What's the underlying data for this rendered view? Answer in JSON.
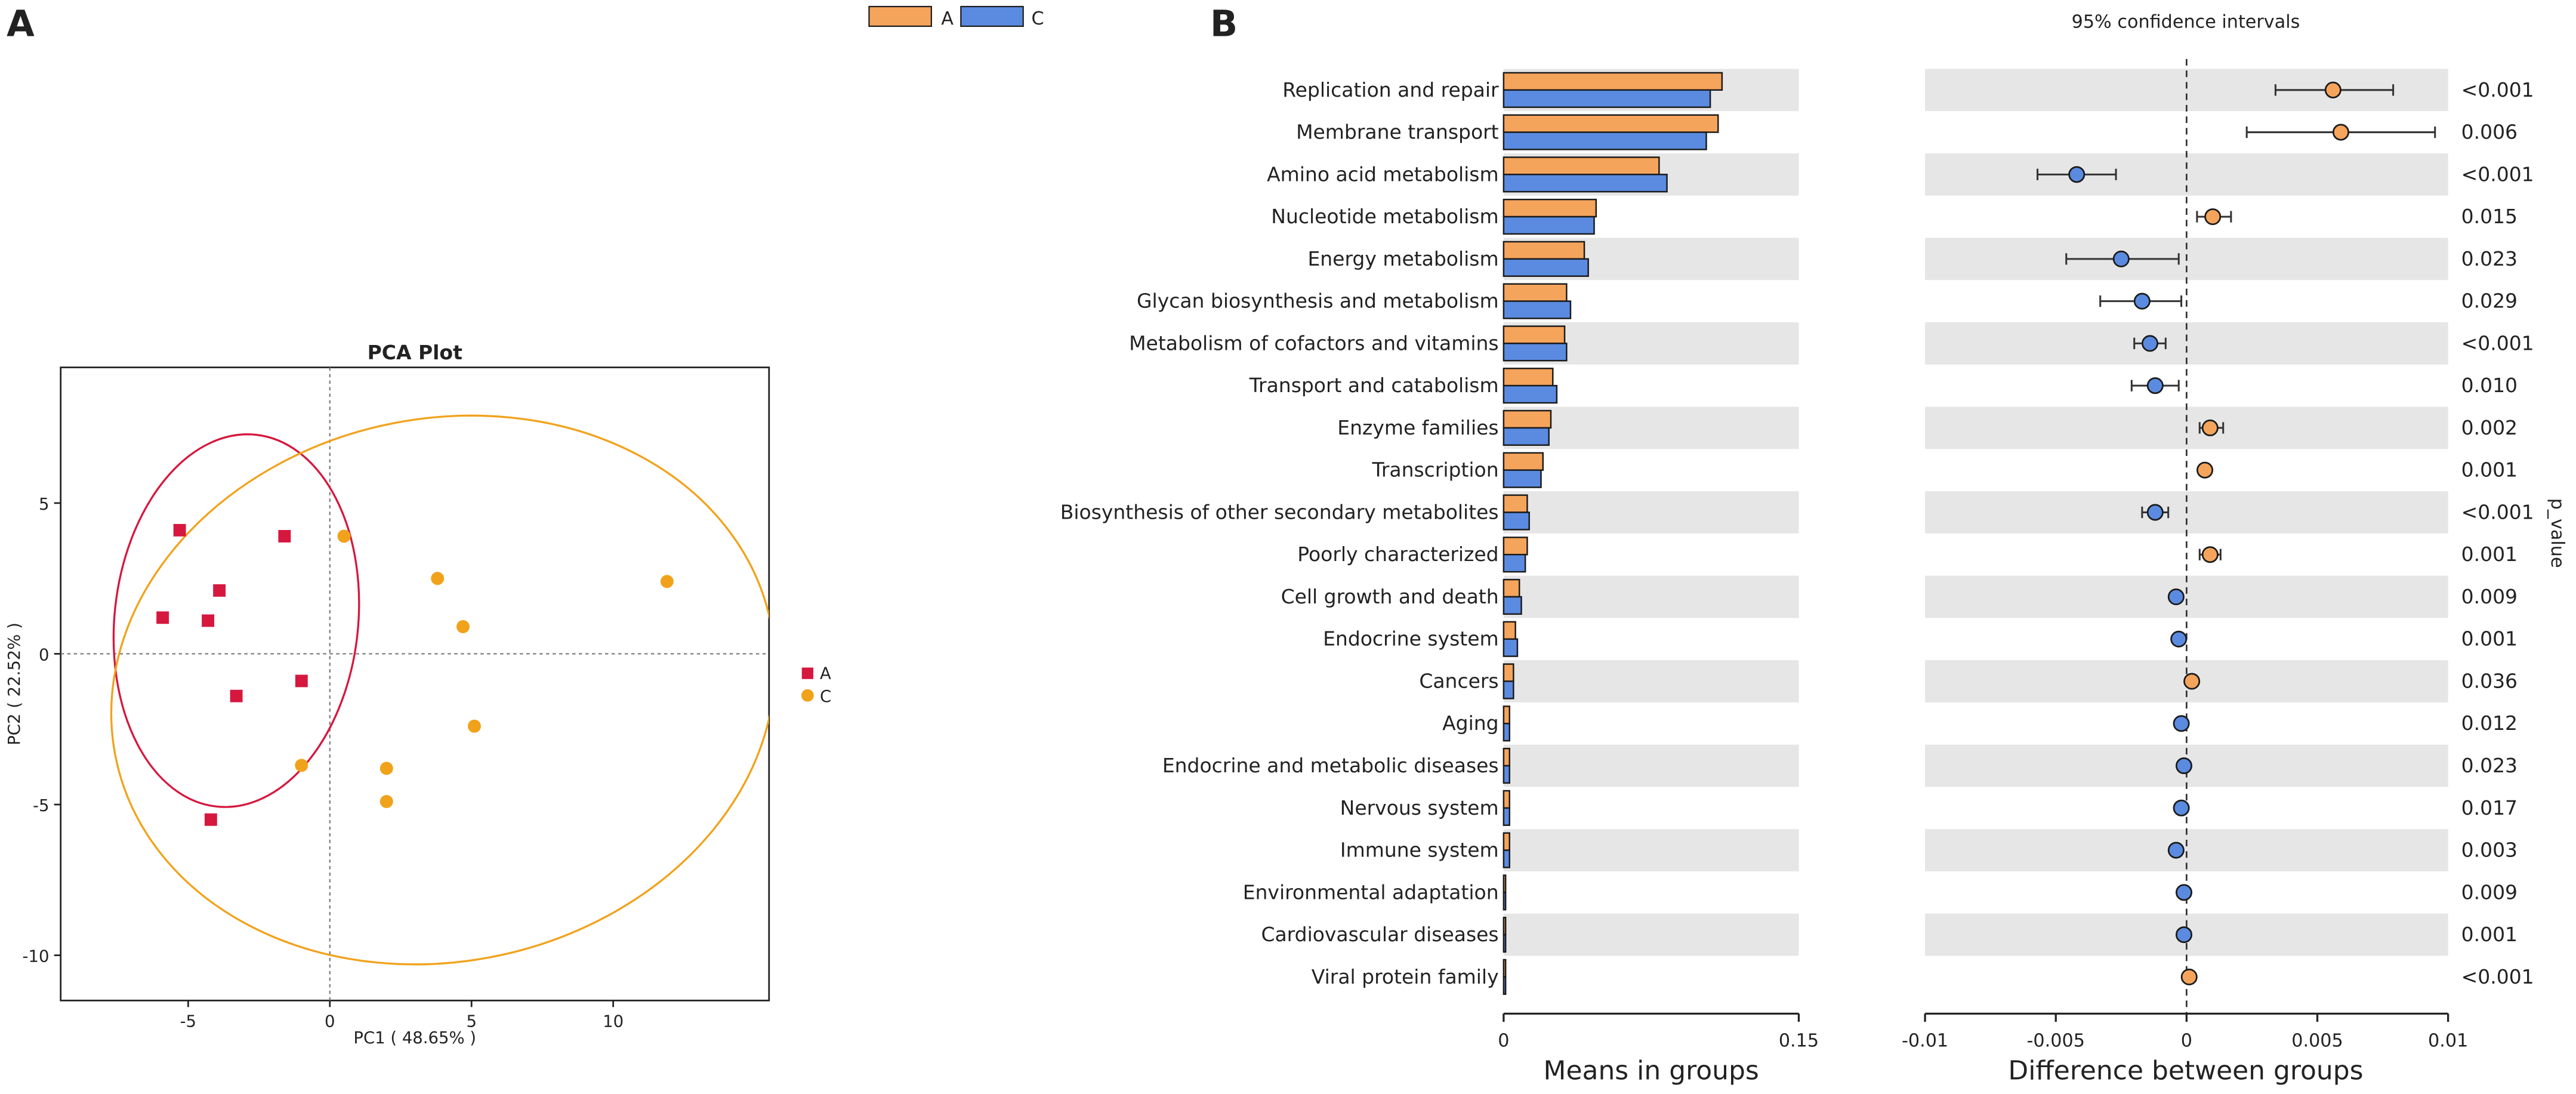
{
  "figure": {
    "colors": {
      "A_pca": "#d6173e",
      "C_pca": "#f1a21b",
      "A_bar": "#f5a45c",
      "C_bar": "#5b8be0",
      "stroke": "#1b1b1b",
      "stripe": "#e6e6e6"
    }
  },
  "chart_data": [
    {
      "id": "panel-a",
      "type": "scatter",
      "panel_label": "A",
      "title": "PCA Plot",
      "xlabel": "PC1 ( 48.65% )",
      "ylabel": "PC2 ( 22.52% )",
      "xlim": [
        -9.5,
        15.5
      ],
      "ylim": [
        -11.5,
        9.5
      ],
      "xticks": [
        -5,
        0,
        5,
        10
      ],
      "yticks": [
        5,
        0,
        -5,
        -10
      ],
      "legend": [
        "A",
        "C"
      ],
      "series": [
        {
          "name": "A",
          "marker": "square",
          "points": [
            [
              -5.3,
              4.1
            ],
            [
              -1.6,
              3.9
            ],
            [
              -3.9,
              2.1
            ],
            [
              -5.9,
              1.2
            ],
            [
              -4.3,
              1.1
            ],
            [
              -1.0,
              -0.9
            ],
            [
              -3.3,
              -1.4
            ],
            [
              -4.2,
              -5.5
            ]
          ]
        },
        {
          "name": "C",
          "marker": "circle",
          "points": [
            [
              0.5,
              3.9
            ],
            [
              3.8,
              2.5
            ],
            [
              11.9,
              2.4
            ],
            [
              4.7,
              0.9
            ],
            [
              5.1,
              -2.4
            ],
            [
              -1.0,
              -3.7
            ],
            [
              2.0,
              -3.8
            ],
            [
              2.0,
              -4.9
            ]
          ]
        }
      ],
      "ellipses": [
        {
          "series": "A",
          "center": [
            -3.3,
            1.1
          ],
          "rx": 4.3,
          "ry": 6.2,
          "angle": 6
        },
        {
          "series": "C",
          "center": [
            4.0,
            -1.2
          ],
          "rx": 11.8,
          "ry": 9.0,
          "angle": -12
        }
      ]
    },
    {
      "id": "panel-b",
      "type": "bar",
      "panel_label": "B",
      "legend": [
        "A",
        "C"
      ],
      "xlabel": "Means in groups",
      "xlim": [
        0,
        0.15
      ],
      "xticks": [
        0,
        0.15
      ],
      "categories": [
        "Replication and repair",
        "Membrane transport",
        "Amino acid metabolism",
        "Nucleotide metabolism",
        "Energy metabolism",
        "Glycan biosynthesis and metabolism",
        "Metabolism of cofactors and vitamins",
        "Transport and catabolism",
        "Enzyme families",
        "Transcription",
        "Biosynthesis of other secondary metabolites",
        "Poorly characterized",
        "Cell growth and death",
        "Endocrine system",
        "Cancers",
        "Aging",
        "Endocrine and metabolic diseases",
        "Nervous system",
        "Immune system",
        "Environmental adaptation",
        "Cardiovascular diseases",
        "Viral protein family"
      ],
      "series": [
        {
          "name": "A",
          "values": [
            0.111,
            0.109,
            0.079,
            0.047,
            0.041,
            0.032,
            0.031,
            0.025,
            0.024,
            0.02,
            0.012,
            0.012,
            0.008,
            0.006,
            0.005,
            0.003,
            0.003,
            0.003,
            0.003,
            0.001,
            0.001,
            0.001
          ]
        },
        {
          "name": "C",
          "values": [
            0.105,
            0.103,
            0.083,
            0.046,
            0.043,
            0.034,
            0.032,
            0.027,
            0.023,
            0.019,
            0.013,
            0.011,
            0.009,
            0.007,
            0.005,
            0.003,
            0.003,
            0.003,
            0.003,
            0.001,
            0.001,
            0.001
          ]
        }
      ]
    },
    {
      "id": "panel-b-diff",
      "type": "scatter",
      "title": "95% confidence intervals",
      "xlabel": "Difference between groups",
      "ylabel": "p_value",
      "xlim": [
        -0.01,
        0.01
      ],
      "xticks": [
        -0.01,
        -0.005,
        0,
        0.005,
        0.01
      ],
      "xtick_labels": [
        "-0.01",
        "-0.005",
        "0",
        "0.005",
        "0.01"
      ],
      "diff": [
        0.0056,
        0.0059,
        -0.0042,
        0.001,
        -0.0025,
        -0.0017,
        -0.0014,
        -0.0012,
        0.0009,
        0.0007,
        -0.0012,
        0.0009,
        -0.0004,
        -0.0003,
        0.0002,
        -0.0002,
        -0.0001,
        -0.0002,
        -0.0004,
        -0.0001,
        -0.0001,
        0.0001
      ],
      "ci_low": [
        0.0034,
        0.0023,
        -0.0057,
        0.0004,
        -0.0046,
        -0.0033,
        -0.002,
        -0.0021,
        0.0005,
        0.0007,
        -0.0017,
        0.0005,
        -0.0004,
        -0.0003,
        0.0002,
        -0.0002,
        -0.0001,
        -0.0002,
        -0.0004,
        -0.0001,
        -0.0001,
        0.0001
      ],
      "ci_high": [
        0.0079,
        0.0095,
        -0.0027,
        0.0017,
        -0.0003,
        -0.0002,
        -0.0008,
        -0.0003,
        0.0014,
        0.0007,
        -0.0007,
        0.0013,
        -0.0004,
        -0.0003,
        0.0002,
        -0.0002,
        -0.0001,
        -0.0002,
        -0.0004,
        -0.0001,
        -0.0001,
        0.0001
      ],
      "colors": [
        "A",
        "A",
        "C",
        "A",
        "C",
        "C",
        "C",
        "C",
        "A",
        "A",
        "C",
        "A",
        "C",
        "C",
        "A",
        "C",
        "C",
        "C",
        "C",
        "C",
        "C",
        "A"
      ],
      "p_values": [
        "<0.001",
        "0.006",
        "<0.001",
        "0.015",
        "0.023",
        "0.029",
        "<0.001",
        "0.010",
        "0.002",
        "0.001",
        "<0.001",
        "0.001",
        "0.009",
        "0.001",
        "0.036",
        "0.012",
        "0.023",
        "0.017",
        "0.003",
        "0.009",
        "0.001",
        "<0.001"
      ]
    }
  ]
}
